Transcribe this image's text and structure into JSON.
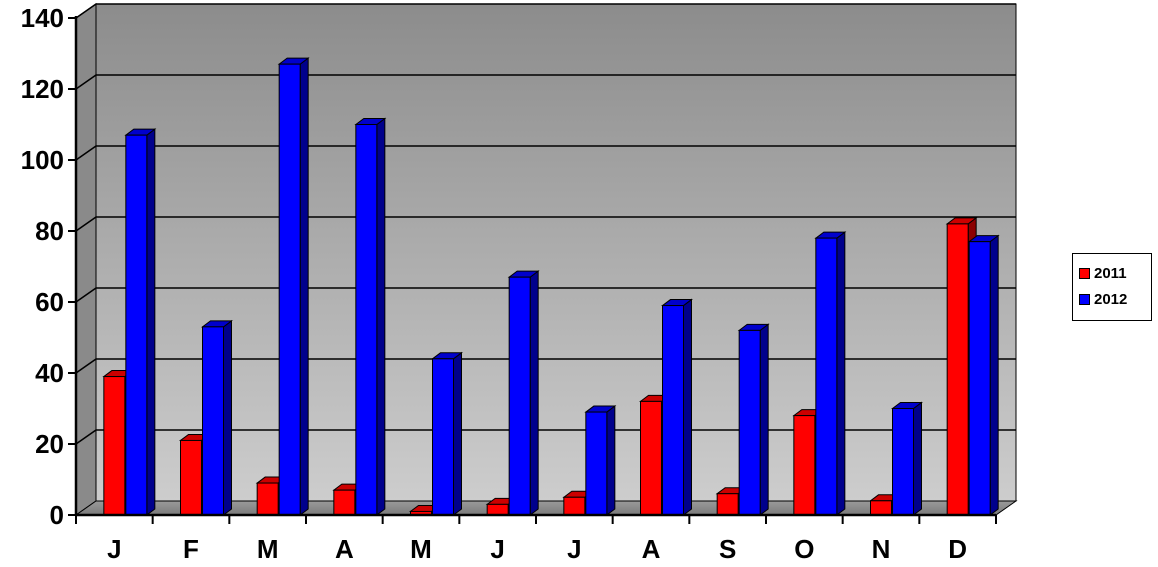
{
  "chart_data": {
    "type": "bar",
    "title": "",
    "xlabel": "",
    "ylabel": "",
    "categories": [
      "J",
      "F",
      "M",
      "A",
      "M",
      "J",
      "J",
      "A",
      "S",
      "O",
      "N",
      "D"
    ],
    "series": [
      {
        "name": "2011",
        "color": "#ff0000",
        "values": [
          39,
          21,
          9,
          7,
          1,
          3,
          5,
          32,
          6,
          28,
          4,
          82
        ]
      },
      {
        "name": "2012",
        "color": "#0000ff",
        "values": [
          107,
          53,
          127,
          110,
          44,
          67,
          29,
          59,
          52,
          78,
          30,
          77
        ]
      }
    ],
    "ylim": [
      0,
      140
    ],
    "yticks": [
      "0",
      "20",
      "40",
      "60",
      "80",
      "100",
      "120",
      "140"
    ],
    "grid": true,
    "legend": "right"
  }
}
